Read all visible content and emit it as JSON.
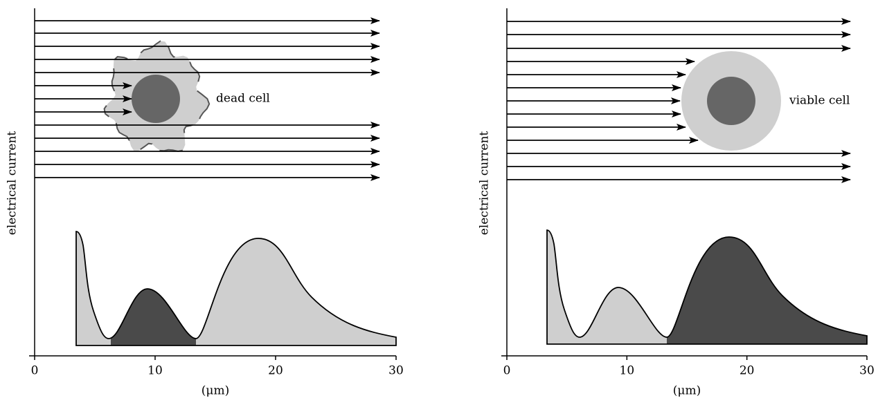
{
  "panels": [
    {
      "y_label": "electrical current",
      "x_label": "(μm)",
      "x_ticks": [
        "0",
        "10",
        "20",
        "30"
      ],
      "cell_label": "dead cell"
    },
    {
      "y_label": "electrical current",
      "x_label": "(μm)",
      "x_ticks": [
        "0",
        "10",
        "20",
        "30"
      ],
      "cell_label": "viable cell"
    }
  ]
}
